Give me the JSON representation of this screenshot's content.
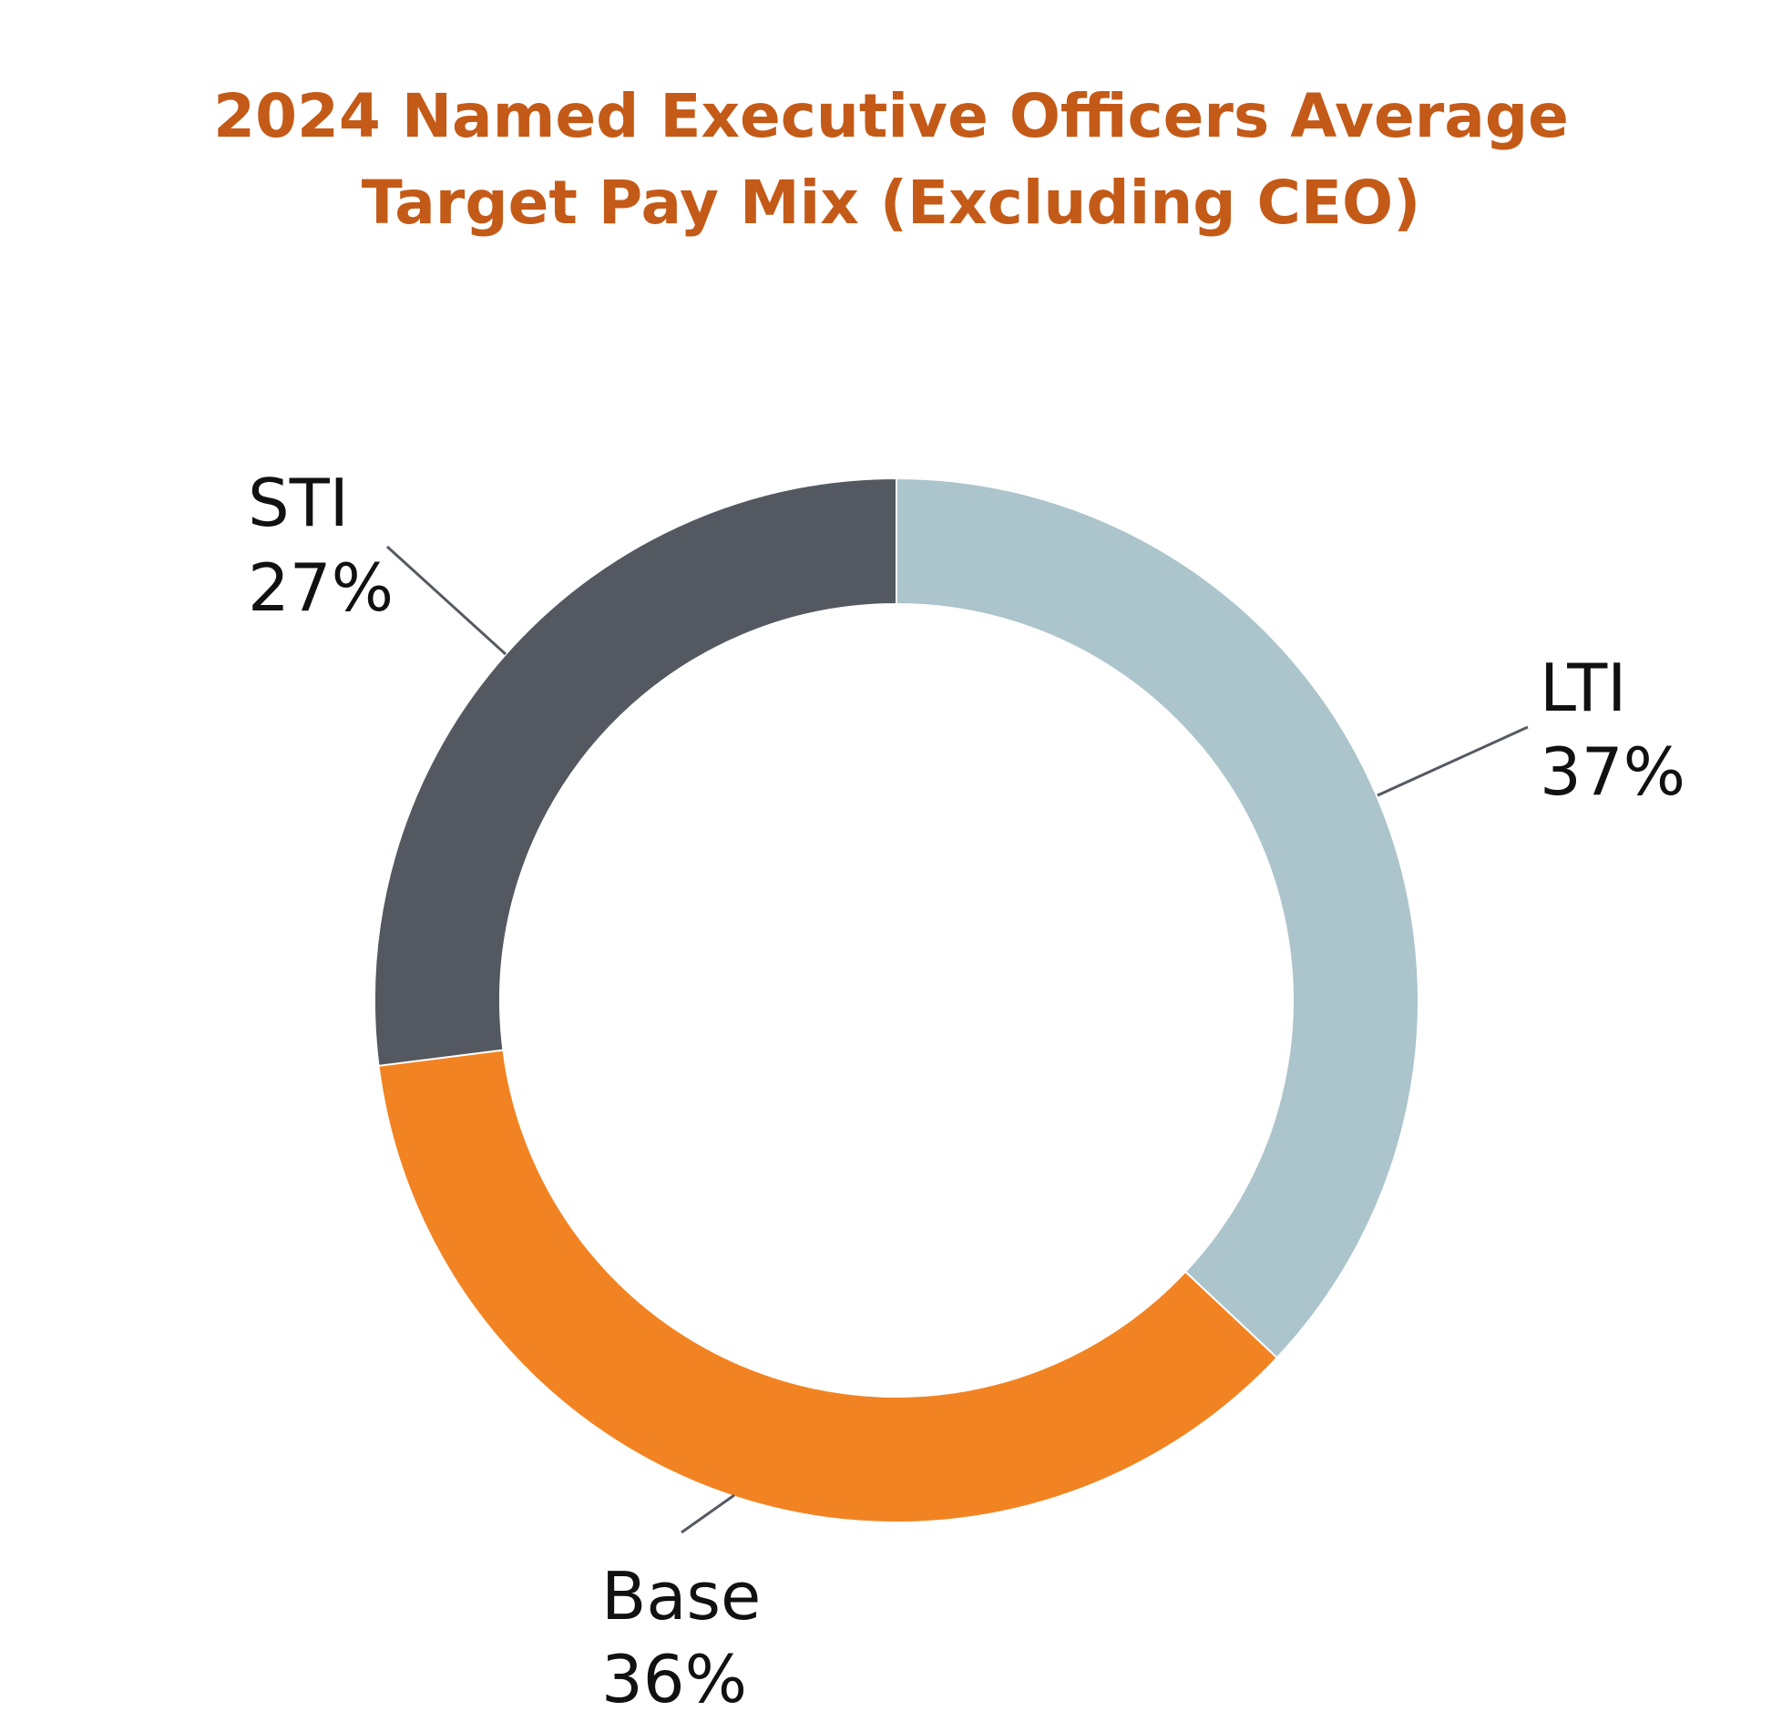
{
  "chart_data": {
    "type": "pie",
    "variant": "donut",
    "title": "2024 Named Executive Officers Average Target Pay Mix (Excluding CEO)",
    "title_lines": [
      "2024 Named Executive Officers Average",
      "Target Pay Mix (Excluding CEO)"
    ],
    "slices": [
      {
        "name": "LTI",
        "value": 37,
        "value_label": "37%",
        "color": "#acc4cb"
      },
      {
        "name": "Base",
        "value": 36,
        "value_label": "36%",
        "color": "#f28322"
      },
      {
        "name": "STI",
        "value": 27,
        "value_label": "27%",
        "color": "#545961"
      }
    ],
    "unit": "%",
    "legend": "none",
    "title_color": "#c45a18"
  }
}
